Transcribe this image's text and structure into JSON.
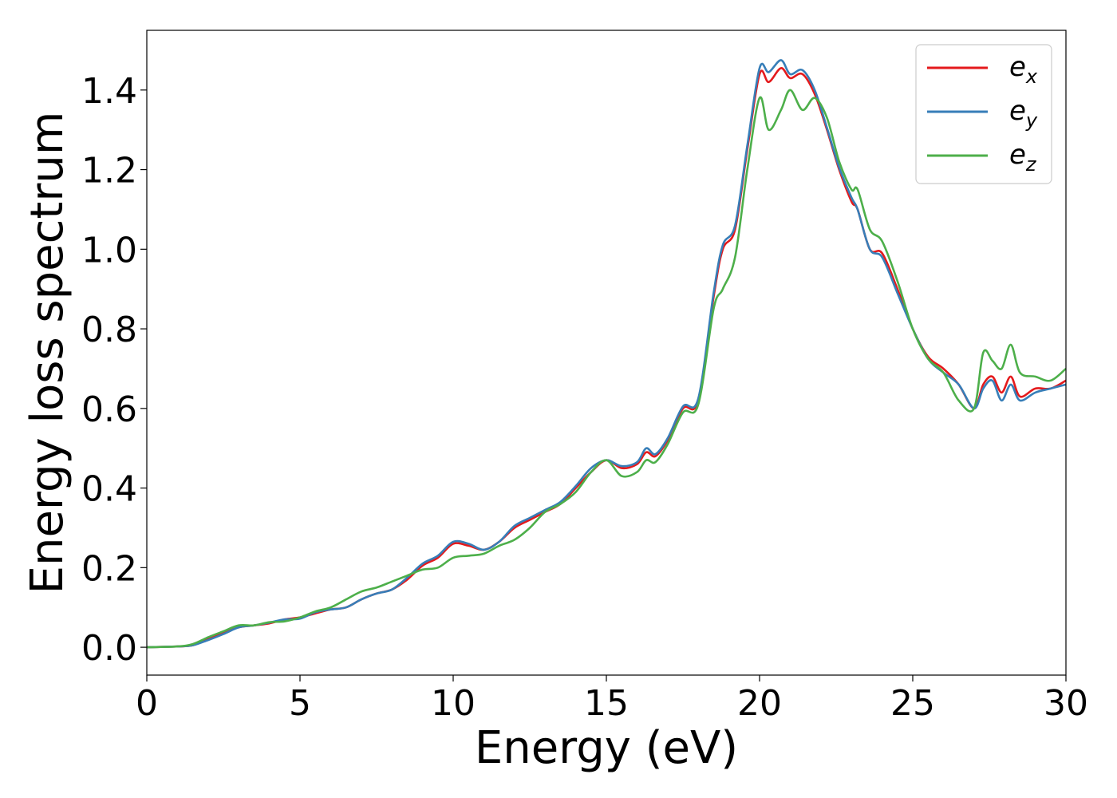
{
  "chart_data": {
    "type": "line",
    "title": "",
    "xlabel": "Energy (eV)",
    "ylabel": "Energy loss spectrum",
    "xlim": [
      0,
      30
    ],
    "ylim": [
      -0.07,
      1.55
    ],
    "xticks": [
      0,
      5,
      10,
      15,
      20,
      25,
      30
    ],
    "xtick_labels": [
      "0",
      "5",
      "10",
      "15",
      "20",
      "25",
      "30"
    ],
    "yticks": [
      0.0,
      0.2,
      0.4,
      0.6,
      0.8,
      1.0,
      1.2,
      1.4
    ],
    "ytick_labels": [
      "0.0",
      "0.2",
      "0.4",
      "0.6",
      "0.8",
      "1.0",
      "1.2",
      "1.4"
    ],
    "grid": false,
    "legend_position": "top-right",
    "x": [
      0,
      1,
      1.5,
      2,
      2.5,
      3,
      3.5,
      4,
      4.5,
      5,
      5.5,
      6,
      6.5,
      7,
      7.5,
      8,
      8.5,
      9,
      9.5,
      10,
      10.5,
      11,
      11.5,
      12,
      12.5,
      13,
      13.5,
      14,
      14.5,
      15,
      15.5,
      16,
      16.3,
      16.6,
      17,
      17.5,
      18,
      18.5,
      18.8,
      19.2,
      19.6,
      20,
      20.3,
      20.7,
      21,
      21.4,
      21.8,
      22.2,
      22.6,
      23,
      23.2,
      23.6,
      24,
      24.5,
      25,
      25.5,
      26,
      26.5,
      27,
      27.3,
      27.6,
      27.9,
      28.2,
      28.5,
      29,
      29.5,
      30
    ],
    "series": [
      {
        "name": "e",
        "subscript": "x",
        "color": "#e41a1c",
        "values": [
          0.0,
          0.002,
          0.005,
          0.02,
          0.035,
          0.05,
          0.055,
          0.06,
          0.07,
          0.075,
          0.085,
          0.095,
          0.1,
          0.12,
          0.135,
          0.145,
          0.17,
          0.205,
          0.225,
          0.26,
          0.255,
          0.245,
          0.265,
          0.3,
          0.32,
          0.34,
          0.36,
          0.4,
          0.44,
          0.47,
          0.45,
          0.46,
          0.49,
          0.48,
          0.52,
          0.6,
          0.62,
          0.88,
          1.0,
          1.05,
          1.25,
          1.44,
          1.42,
          1.455,
          1.43,
          1.44,
          1.39,
          1.3,
          1.2,
          1.12,
          1.1,
          1.0,
          0.99,
          0.9,
          0.8,
          0.73,
          0.7,
          0.66,
          0.6,
          0.66,
          0.68,
          0.64,
          0.68,
          0.63,
          0.65,
          0.65,
          0.67
        ]
      },
      {
        "name": "e",
        "subscript": "y",
        "color": "#377eb8",
        "values": [
          0.0,
          0.002,
          0.005,
          0.018,
          0.033,
          0.05,
          0.055,
          0.062,
          0.07,
          0.072,
          0.088,
          0.095,
          0.1,
          0.12,
          0.135,
          0.145,
          0.175,
          0.21,
          0.23,
          0.265,
          0.26,
          0.245,
          0.265,
          0.305,
          0.325,
          0.345,
          0.365,
          0.405,
          0.45,
          0.47,
          0.455,
          0.465,
          0.5,
          0.485,
          0.525,
          0.605,
          0.625,
          0.89,
          1.01,
          1.06,
          1.26,
          1.455,
          1.445,
          1.475,
          1.44,
          1.45,
          1.4,
          1.305,
          1.205,
          1.13,
          1.1,
          1.0,
          0.98,
          0.89,
          0.8,
          0.725,
          0.69,
          0.66,
          0.6,
          0.65,
          0.67,
          0.62,
          0.66,
          0.62,
          0.64,
          0.65,
          0.66
        ]
      },
      {
        "name": "e",
        "subscript": "z",
        "color": "#4daf4a",
        "values": [
          0.0,
          0.002,
          0.008,
          0.025,
          0.04,
          0.055,
          0.055,
          0.063,
          0.065,
          0.075,
          0.09,
          0.1,
          0.12,
          0.14,
          0.15,
          0.165,
          0.18,
          0.195,
          0.2,
          0.225,
          0.23,
          0.235,
          0.255,
          0.27,
          0.3,
          0.34,
          0.36,
          0.39,
          0.44,
          0.47,
          0.43,
          0.44,
          0.47,
          0.465,
          0.51,
          0.59,
          0.61,
          0.85,
          0.9,
          0.98,
          1.2,
          1.38,
          1.3,
          1.35,
          1.4,
          1.35,
          1.38,
          1.33,
          1.22,
          1.15,
          1.15,
          1.05,
          1.02,
          0.92,
          0.8,
          0.725,
          0.69,
          0.62,
          0.6,
          0.74,
          0.72,
          0.7,
          0.76,
          0.69,
          0.68,
          0.67,
          0.7
        ]
      }
    ]
  }
}
